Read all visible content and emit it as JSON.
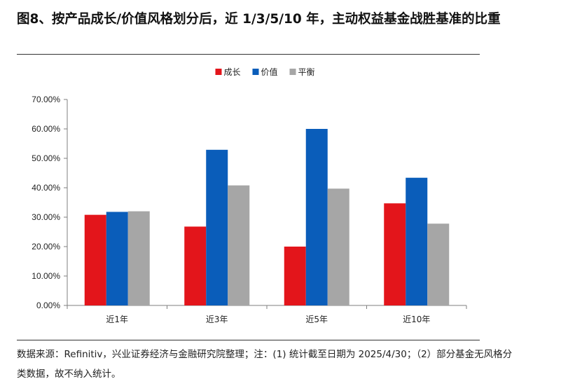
{
  "figure": {
    "title": "图8、按产品成长/价值风格划分后，近 1/3/5/10 年，主动权益基金战胜基准的比重",
    "source_note": "数据来源：Refinitiv，兴业证券经济与金融研究院整理；注：(1) 统计截至日期为 2025/4/30；（2）部分基金无风格分类数据，故不纳入统计。"
  },
  "chart_data": {
    "type": "bar",
    "title": "",
    "xlabel": "",
    "ylabel": "",
    "categories": [
      "近1年",
      "近3年",
      "近5年",
      "近10年"
    ],
    "series": [
      {
        "name": "成长",
        "color": "#E3151B",
        "values": [
          30.8,
          26.8,
          20.0,
          34.7
        ]
      },
      {
        "name": "价值",
        "color": "#0A5DBA",
        "values": [
          31.8,
          52.9,
          60.0,
          43.4
        ]
      },
      {
        "name": "平衡",
        "color": "#A6A6A6",
        "values": [
          32.0,
          40.8,
          39.7,
          27.8
        ]
      }
    ],
    "ylim": [
      0,
      70
    ],
    "yticks": [
      "0.00%",
      "10.00%",
      "20.00%",
      "30.00%",
      "40.00%",
      "50.00%",
      "60.00%",
      "70.00%"
    ],
    "grid": false,
    "legend_position": "top-center"
  }
}
